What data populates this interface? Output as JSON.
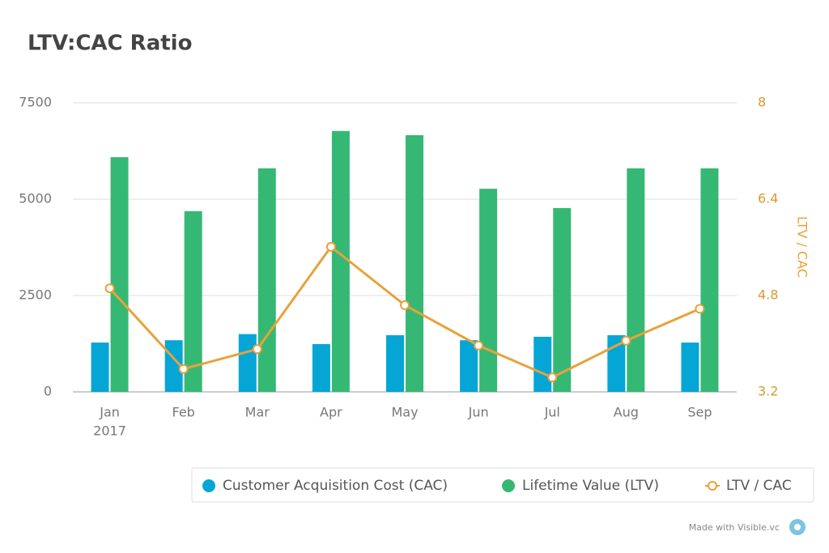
{
  "chart_data": {
    "type": "bar",
    "title": "LTV:CAC Ratio",
    "categories": [
      "Jan",
      "Feb",
      "Mar",
      "Apr",
      "May",
      "Jun",
      "Jul",
      "Aug",
      "Sep"
    ],
    "year": "2017",
    "series": [
      {
        "name": "Customer Acquisition Cost (CAC)",
        "type": "bar",
        "color": "#05a6d6",
        "values": [
          1280,
          1340,
          1500,
          1240,
          1470,
          1340,
          1430,
          1470,
          1280
        ]
      },
      {
        "name": "Lifetime Value (LTV)",
        "type": "bar",
        "color": "#36b875",
        "values": [
          6090,
          4690,
          5800,
          6770,
          6660,
          5270,
          4770,
          5800,
          5800
        ]
      },
      {
        "name": "LTV / CAC",
        "type": "line",
        "axis": "y2",
        "color": "#e8a23a",
        "values": [
          4.92,
          3.58,
          3.91,
          5.61,
          4.64,
          3.97,
          3.44,
          4.05,
          4.58
        ]
      }
    ],
    "ylim": [
      0,
      7500
    ],
    "yticks": [
      0,
      2500,
      5000,
      7500
    ],
    "y2lim": [
      3.2,
      8
    ],
    "y2ticks": [
      3.2,
      4.8,
      6.4,
      8
    ],
    "y2label": "LTV / CAC",
    "grid": true,
    "legend": "bottom",
    "footer": "Made with Visible.vc"
  }
}
